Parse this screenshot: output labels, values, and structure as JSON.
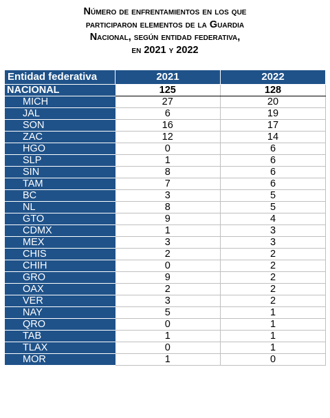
{
  "title": {
    "line1": "Número de enfrentamientos en los que",
    "line2": "participaron elementos de la Guardia",
    "line3": "Nacional, según entidad federativa,",
    "line4": "en 2021 y 2022"
  },
  "table": {
    "headers": [
      "Entidad federativa",
      "2021",
      "2022"
    ],
    "rows": [
      [
        "NACIONAL",
        "125",
        "128"
      ],
      [
        "MICH",
        "27",
        "20"
      ],
      [
        "JAL",
        "6",
        "19"
      ],
      [
        "SON",
        "16",
        "17"
      ],
      [
        "ZAC",
        "12",
        "14"
      ],
      [
        "HGO",
        "0",
        "6"
      ],
      [
        "SLP",
        "1",
        "6"
      ],
      [
        "SIN",
        "8",
        "6"
      ],
      [
        "TAM",
        "7",
        "6"
      ],
      [
        "BC",
        "3",
        "5"
      ],
      [
        "NL",
        "8",
        "5"
      ],
      [
        "GTO",
        "9",
        "4"
      ],
      [
        "CDMX",
        "1",
        "3"
      ],
      [
        "MEX",
        "3",
        "3"
      ],
      [
        "CHIS",
        "2",
        "2"
      ],
      [
        "CHIH",
        "0",
        "2"
      ],
      [
        "GRO",
        "9",
        "2"
      ],
      [
        "OAX",
        "2",
        "2"
      ],
      [
        "VER",
        "3",
        "2"
      ],
      [
        "NAY",
        "5",
        "1"
      ],
      [
        "QRO",
        "0",
        "1"
      ],
      [
        "TAB",
        "1",
        "1"
      ],
      [
        "TLAX",
        "0",
        "1"
      ],
      [
        "MOR",
        "1",
        "0"
      ]
    ]
  },
  "colors": {
    "header_bg": "#1f5289",
    "header_text": "#ffffff"
  }
}
